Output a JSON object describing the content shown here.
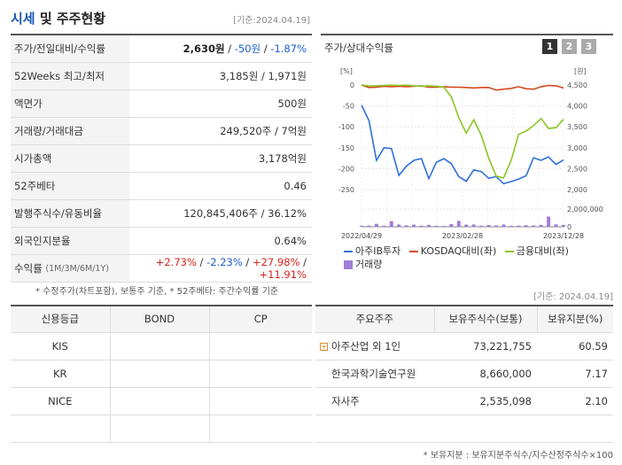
{
  "header": {
    "title_main": "시세",
    "title_rest": " 및 주주현황",
    "date": "[기준:2024.04.19]"
  },
  "summary": [
    {
      "label": "주가/전일대비/수익률",
      "price": "2,630원",
      "change": "-50원",
      "rate": "-1.87%"
    },
    {
      "label": "52Weeks 최고/최저",
      "value": "3,185원 / 1,971원"
    },
    {
      "label": "액면가",
      "value": "500원"
    },
    {
      "label": "거래량/거래대금",
      "value": "249,520주 / 7억원"
    },
    {
      "label": "시가총액",
      "value": "3,178억원"
    },
    {
      "label": "52주베타",
      "value": "0.46"
    },
    {
      "label": "발행주식수/유동비율",
      "value": "120,845,406주 / 36.12%"
    },
    {
      "label": "외국인지분율",
      "value": "0.64%"
    },
    {
      "label": "수익률",
      "label_sub": "(1M/3M/6M/1Y)",
      "r1": "+2.73%",
      "r2": "-2.23%",
      "r3": "+27.98%",
      "r4": "+11.91%"
    }
  ],
  "left_note": "* 수정주가(차트포함), 보통주 기준, * 52주베타: 주간수익률 기준",
  "chart_panel": {
    "title": "주가/상대수익률",
    "buttons": [
      "1",
      "2",
      "3"
    ],
    "active_button": 0,
    "legend": [
      {
        "label": "아주IB투자",
        "color": "#2f6fdc",
        "kind": "line"
      },
      {
        "label": "KOSDAQ대비(좌)",
        "color": "#d14a1e",
        "kind": "line"
      },
      {
        "label": "금융대비(좌)",
        "color": "#8cc626",
        "kind": "line"
      },
      {
        "label": "거래량",
        "color": "#a07fd6",
        "kind": "box"
      }
    ]
  },
  "chart_data": {
    "type": "line",
    "left_axis": {
      "unit": "[%]",
      "ticks": [
        "0",
        "-50",
        "-100",
        "-150",
        "-200",
        "-250"
      ],
      "range": [
        -250,
        0
      ]
    },
    "right_axis": {
      "unit": "[원]",
      "ticks": [
        "4,500",
        "4,000",
        "3,500",
        "3,000",
        "2,500",
        "2,000"
      ],
      "range": [
        2000,
        4500
      ]
    },
    "volume_axis": {
      "ticks": [
        "2,000,000",
        "0"
      ],
      "range": [
        0,
        2000000
      ]
    },
    "x_labels": [
      "2022/04/29",
      "2023/02/28",
      "2023/12/28"
    ],
    "x_label_pos": [
      0,
      0.5,
      1
    ],
    "series": [
      {
        "name": "아주IB투자",
        "color": "#2f6fdc",
        "axis": "right",
        "values": [
          4020,
          3650,
          2700,
          3000,
          2980,
          2340,
          2560,
          2700,
          2740,
          2260,
          2650,
          2740,
          2620,
          2310,
          2200,
          2470,
          2430,
          2270,
          2310,
          2140,
          2190,
          2250,
          2330,
          2760,
          2700,
          2780,
          2600,
          2710
        ]
      },
      {
        "name": "KOSDAQ대비(좌)",
        "color": "#d14a1e",
        "axis": "left",
        "values": [
          0,
          -6,
          -5,
          -3,
          -4,
          -3,
          -4,
          -3,
          -2,
          -5,
          -5,
          -4,
          -5,
          -5,
          -6,
          -7,
          -6,
          -6,
          -12,
          -10,
          -8,
          -4,
          -9,
          -10,
          -4,
          -1,
          -2,
          -7
        ]
      },
      {
        "name": "금융대비(좌)",
        "color": "#8cc626",
        "axis": "left",
        "values": [
          0,
          -2,
          -2,
          -1,
          0,
          -1,
          0,
          -2,
          -3,
          -2,
          -3,
          -5,
          -28,
          -78,
          -115,
          -83,
          -120,
          -175,
          -218,
          -222,
          -180,
          -118,
          -110,
          -97,
          -80,
          -104,
          -102,
          -82
        ]
      }
    ],
    "volume": [
      120000,
      140000,
      330000,
      120000,
      630000,
      250000,
      160000,
      240000,
      130000,
      220000,
      110000,
      90000,
      300000,
      650000,
      240000,
      260000,
      120000,
      200000,
      150000,
      260000,
      110000,
      130000,
      180000,
      150000,
      220000,
      1150000,
      270000,
      200000
    ]
  },
  "right_date": "[기준: 2024.04.19]",
  "credit": {
    "headers": [
      "신용등급",
      "BOND",
      "CP"
    ],
    "rows": [
      [
        "KIS",
        "",
        ""
      ],
      [
        "KR",
        "",
        ""
      ],
      [
        "NICE",
        "",
        ""
      ],
      [
        "",
        "",
        ""
      ]
    ]
  },
  "holders": {
    "headers": [
      "주요주주",
      "보유주식수(보통)",
      "보유지분(%)"
    ],
    "rows": [
      {
        "name": "아주산업 외 1인",
        "shares": "73,221,755",
        "pct": "60.59",
        "expand": true
      },
      {
        "name": "한국과학기술연구원",
        "shares": "8,660,000",
        "pct": "7.17",
        "expand": false
      },
      {
        "name": "자사주",
        "shares": "2,535,098",
        "pct": "2.10",
        "expand": false
      }
    ]
  },
  "bottom_note": "* 보유지분 : 보유지분주식수/지수산정주식수×100"
}
